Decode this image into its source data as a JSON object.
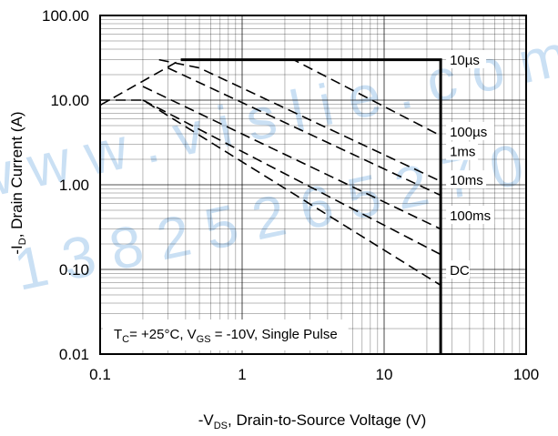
{
  "chart_data": {
    "type": "line",
    "xscale": "log",
    "yscale": "log",
    "xlim": [
      0.1,
      100
    ],
    "ylim": [
      0.01,
      100
    ],
    "grid": true,
    "x_ticks": [
      "0.1",
      "1",
      "10",
      "100"
    ],
    "y_ticks": [
      "0.01",
      "0.10",
      "1.00",
      "10.00",
      "100.00"
    ],
    "xlabel": {
      "prefix": "-V",
      "sub": "DS",
      "suffix": ", Drain-to-Source Voltage (V)"
    },
    "ylabel": {
      "prefix": "-I",
      "sub": "D",
      "suffix": ", Drain Current (A)"
    },
    "note": {
      "t_prefix": "T",
      "t_sub": "C",
      "t_text": "= +25°C, V",
      "v_sub": "GS",
      "v_text": " = -10V, Single Pulse"
    },
    "envelope": {
      "style": "solid",
      "points": [
        [
          0.37,
          30
        ],
        [
          25,
          30
        ],
        [
          25,
          0.01
        ]
      ]
    },
    "series": [
      {
        "name": "10µs",
        "style": "dashed",
        "points": [
          [
            0.1,
            8.7
          ],
          [
            0.37,
            30
          ],
          [
            2.3,
            30
          ],
          [
            25,
            3.8
          ]
        ]
      },
      {
        "name": "100µs",
        "style": "dashed",
        "points": [
          [
            0.26,
            30
          ],
          [
            0.5,
            24
          ],
          [
            25,
            1.1
          ]
        ]
      },
      {
        "name": "1ms",
        "style": "dashed",
        "points": [
          [
            0.3,
            24
          ],
          [
            25,
            0.75
          ]
        ]
      },
      {
        "name": "10ms",
        "style": "dashed",
        "points": [
          [
            0.2,
            14.5
          ],
          [
            25,
            0.3
          ]
        ]
      },
      {
        "name": "100ms",
        "style": "dashed",
        "points": [
          [
            0.2,
            10
          ],
          [
            25,
            0.15
          ]
        ]
      },
      {
        "name": "DC",
        "style": "dashed",
        "points": [
          [
            0.1,
            10
          ],
          [
            0.2,
            10
          ],
          [
            25,
            0.065
          ]
        ]
      }
    ],
    "curve_labels": [
      {
        "text": "10µs",
        "y": 29
      },
      {
        "text": "100µs",
        "y": 4.1
      },
      {
        "text": "1ms",
        "y": 2.4
      },
      {
        "text": "10ms",
        "y": 1.1
      },
      {
        "text": "100ms",
        "y": 0.42
      },
      {
        "text": "DC",
        "y": 0.095
      }
    ],
    "watermark_lines": [
      "w w w . v i s l i e . c o m",
      "1 3 8  2 5 2 6  5 2 7 0"
    ]
  }
}
